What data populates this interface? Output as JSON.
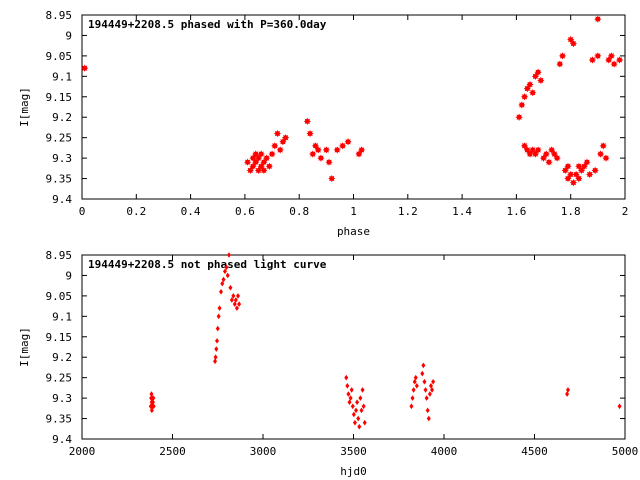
{
  "chart_data": [
    {
      "type": "scatter",
      "title": "194449+2208.5 phased with P=360.0day",
      "xlabel": "phase",
      "ylabel": "I[mag]",
      "xlim": [
        0,
        2
      ],
      "ylim": [
        8.95,
        9.4
      ],
      "y_inverted": true,
      "x_ticks": [
        "0",
        "0.2",
        "0.4",
        "0.6",
        "0.8",
        "1",
        "1.2",
        "1.4",
        "1.6",
        "1.8",
        "2"
      ],
      "y_ticks": [
        "8.95",
        "9",
        "9.05",
        "9.1",
        "9.15",
        "9.2",
        "9.25",
        "9.3",
        "9.35",
        "9.4"
      ],
      "marker_color": "#ff0000",
      "marker": "star",
      "series": [
        {
          "x": [
            0.01,
            0.61,
            0.62,
            0.63,
            0.63,
            0.64,
            0.64,
            0.65,
            0.65,
            0.66,
            0.66,
            0.67,
            0.67,
            0.68,
            0.69,
            0.7,
            0.71,
            0.72,
            0.73,
            0.74,
            0.75,
            0.83,
            0.84,
            0.85,
            0.86,
            0.87,
            0.88,
            0.9,
            0.91,
            0.92,
            0.94,
            0.96,
            0.98,
            1.02,
            1.03,
            1.61,
            1.62,
            1.63,
            1.63,
            1.64,
            1.64,
            1.65,
            1.65,
            1.66,
            1.66,
            1.67,
            1.67,
            1.68,
            1.68,
            1.69,
            1.7,
            1.71,
            1.72,
            1.73,
            1.74,
            1.75,
            1.76,
            1.77,
            1.78,
            1.79,
            1.79,
            1.8,
            1.8,
            1.81,
            1.81,
            1.82,
            1.83,
            1.83,
            1.84,
            1.85,
            1.86,
            1.87,
            1.88,
            1.89,
            1.9,
            1.9,
            1.91,
            1.92,
            1.93,
            1.94,
            1.95,
            1.96,
            1.98
          ],
          "y": [
            9.08,
            9.31,
            9.33,
            9.3,
            9.32,
            9.29,
            9.31,
            9.33,
            9.3,
            9.32,
            9.29,
            9.31,
            9.33,
            9.3,
            9.32,
            9.29,
            9.27,
            9.24,
            9.28,
            9.26,
            9.25,
            9.21,
            9.24,
            9.29,
            9.27,
            9.28,
            9.3,
            9.28,
            9.31,
            9.35,
            9.28,
            9.27,
            9.26,
            9.29,
            9.28,
            9.2,
            9.17,
            9.15,
            9.27,
            9.13,
            9.28,
            9.12,
            9.29,
            9.14,
            9.28,
            9.1,
            9.29,
            9.09,
            9.28,
            9.11,
            9.3,
            9.29,
            9.31,
            9.28,
            9.29,
            9.3,
            9.07,
            9.05,
            9.33,
            9.35,
            9.32,
            9.01,
            9.34,
            9.02,
            9.36,
            9.34,
            9.32,
            9.35,
            9.33,
            9.32,
            9.31,
            9.34,
            9.06,
            9.33,
            8.96,
            9.05,
            9.29,
            9.27,
            9.3,
            9.06,
            9.05,
            9.07,
            9.06
          ]
        }
      ]
    },
    {
      "type": "scatter",
      "title": "194449+2208.5 not phased light curve",
      "xlabel": "hjd0",
      "ylabel": "I[mag]",
      "xlim": [
        2000,
        5000
      ],
      "ylim": [
        8.95,
        9.4
      ],
      "y_inverted": true,
      "x_ticks": [
        "2000",
        "2500",
        "3000",
        "3500",
        "4000",
        "4500",
        "5000"
      ],
      "y_ticks": [
        "8.95",
        "9",
        "9.05",
        "9.1",
        "9.15",
        "9.2",
        "9.25",
        "9.3",
        "9.35",
        "9.4"
      ],
      "marker_color": "#ff0000",
      "marker": "diamond",
      "series": [
        {
          "x": [
            2380,
            2382,
            2384,
            2385,
            2386,
            2388,
            2390,
            2392,
            2394,
            2396,
            2735,
            2738,
            2742,
            2746,
            2750,
            2755,
            2760,
            2768,
            2775,
            2782,
            2790,
            2798,
            2805,
            2812,
            2820,
            2828,
            2836,
            2844,
            2850,
            2856,
            2862,
            2868,
            3460,
            3466,
            3472,
            3478,
            3484,
            3490,
            3496,
            3502,
            3508,
            3514,
            3520,
            3526,
            3532,
            3538,
            3544,
            3550,
            3556,
            3562,
            3820,
            3826,
            3832,
            3838,
            3844,
            3850,
            3880,
            3886,
            3892,
            3898,
            3904,
            3910,
            3916,
            3922,
            3928,
            3934,
            3940,
            4680,
            4685,
            4970
          ],
          "y": [
            9.32,
            9.3,
            9.29,
            9.31,
            9.33,
            9.3,
            9.32,
            9.31,
            9.3,
            9.32,
            9.21,
            9.2,
            9.18,
            9.16,
            9.13,
            9.1,
            9.08,
            9.04,
            9.02,
            9.01,
            8.99,
            8.98,
            9.0,
            8.95,
            9.03,
            9.06,
            9.05,
            9.07,
            9.06,
            9.08,
            9.05,
            9.07,
            9.25,
            9.27,
            9.29,
            9.31,
            9.3,
            9.28,
            9.32,
            9.34,
            9.36,
            9.33,
            9.31,
            9.35,
            9.37,
            9.3,
            9.33,
            9.28,
            9.32,
            9.36,
            9.32,
            9.3,
            9.28,
            9.26,
            9.25,
            9.27,
            9.24,
            9.22,
            9.26,
            9.28,
            9.3,
            9.33,
            9.35,
            9.29,
            9.27,
            9.28,
            9.26,
            9.29,
            9.28,
            9.32
          ]
        }
      ]
    }
  ]
}
